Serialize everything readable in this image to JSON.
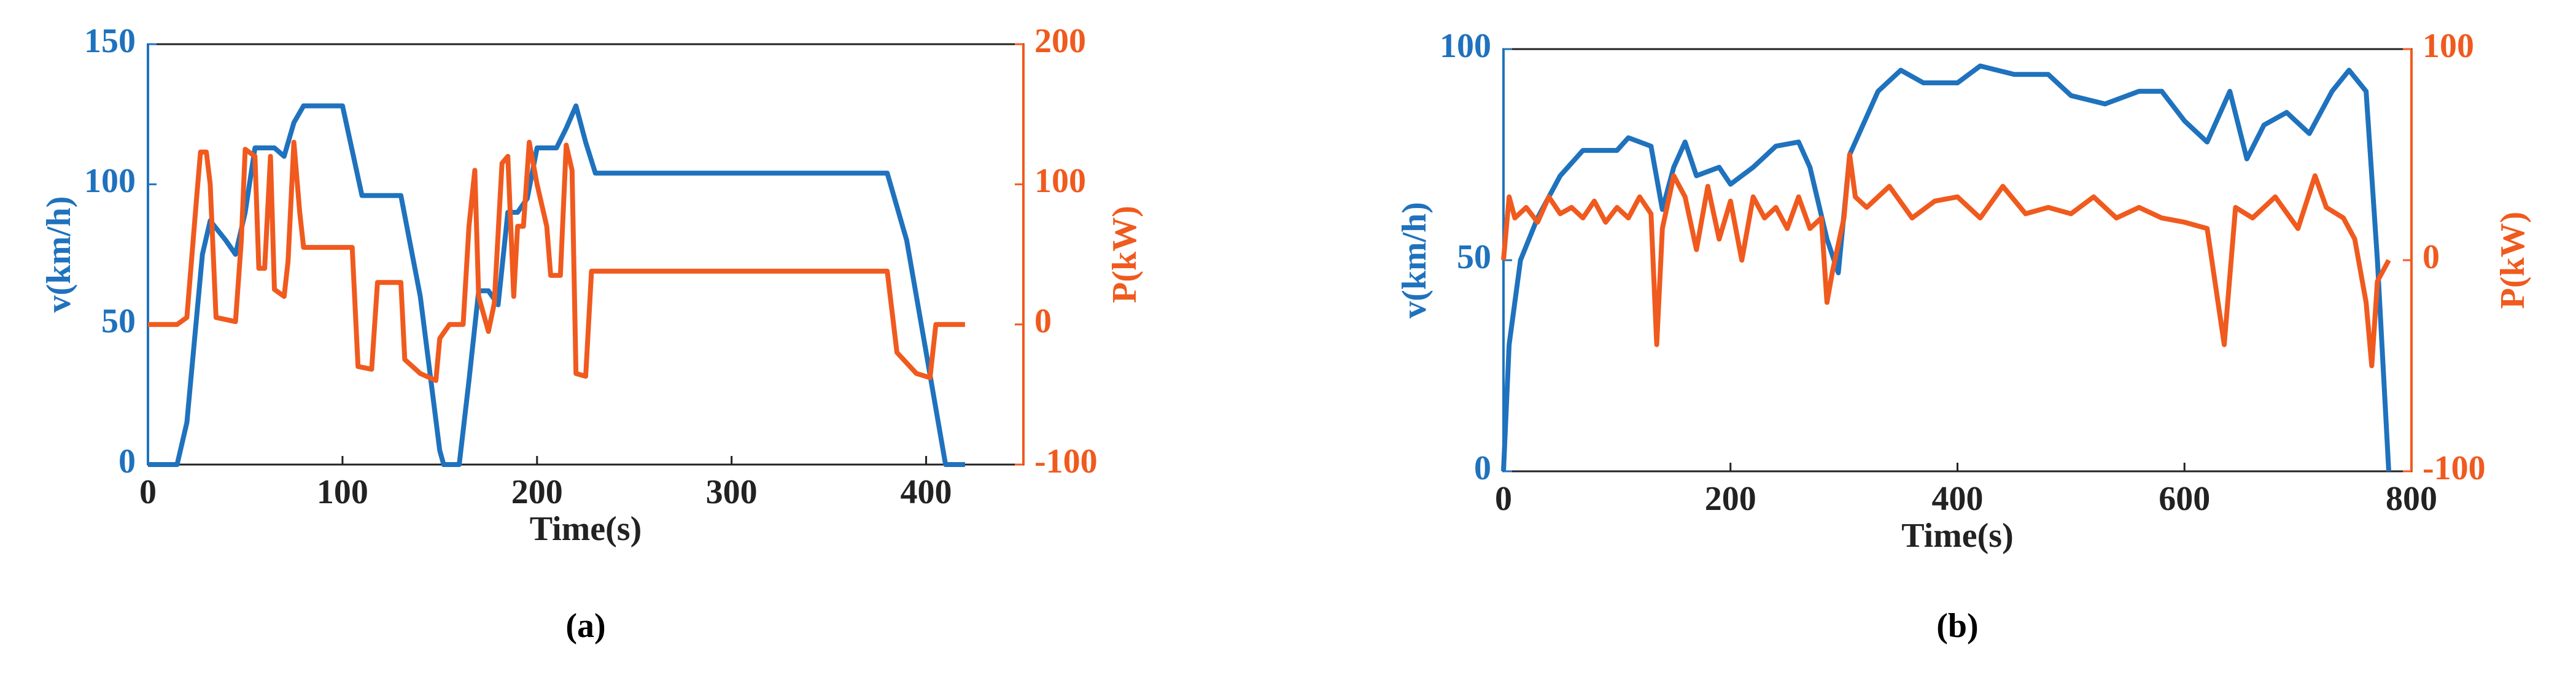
{
  "chart_data": [
    {
      "type": "line",
      "caption": "(a)",
      "xlabel": "Time(s)",
      "ylabel": "v(km/h)",
      "y2label": "P(kW)",
      "xlim": [
        0,
        450
      ],
      "xticks": [
        0,
        100,
        200,
        300,
        400
      ],
      "ylim": [
        0,
        150
      ],
      "yticks": [
        0,
        50,
        100,
        150
      ],
      "y2lim": [
        -100,
        200
      ],
      "y2ticks": [
        -100,
        0,
        100,
        200
      ],
      "series": [
        {
          "color": "#1f72bd",
          "x": [
            0,
            15,
            20,
            28,
            32,
            40,
            45,
            50,
            55,
            65,
            70,
            75,
            80,
            100,
            110,
            130,
            140,
            150,
            152,
            160,
            165,
            170,
            175,
            180,
            185,
            190,
            195,
            200,
            210,
            215,
            220,
            225,
            230,
            380,
            390,
            400,
            410,
            420
          ],
          "values": [
            0,
            0,
            15,
            75,
            87,
            80,
            75,
            90,
            113,
            113,
            110,
            122,
            128,
            128,
            96,
            96,
            60,
            5,
            0,
            0,
            30,
            62,
            62,
            57,
            90,
            90,
            95,
            113,
            113,
            120,
            128,
            115,
            104,
            104,
            80,
            40,
            0,
            0
          ]
        },
        {
          "color": "#f05a1e",
          "axis": "y2",
          "x": [
            0,
            15,
            20,
            25,
            27,
            30,
            32,
            35,
            45,
            48,
            50,
            55,
            57,
            60,
            63,
            65,
            70,
            72,
            75,
            78,
            80,
            105,
            108,
            115,
            118,
            130,
            132,
            140,
            148,
            150,
            155,
            162,
            165,
            168,
            170,
            172,
            175,
            178,
            182,
            185,
            188,
            190,
            193,
            196,
            200,
            205,
            207,
            212,
            215,
            218,
            220,
            225,
            228,
            380,
            385,
            395,
            402,
            405,
            420
          ],
          "values": [
            0,
            0,
            5,
            90,
            123,
            123,
            100,
            5,
            2,
            60,
            125,
            120,
            40,
            40,
            120,
            25,
            20,
            45,
            130,
            80,
            55,
            55,
            -30,
            -32,
            30,
            30,
            -25,
            -35,
            -40,
            -10,
            0,
            0,
            70,
            110,
            20,
            10,
            -5,
            15,
            115,
            120,
            20,
            70,
            70,
            130,
            100,
            70,
            35,
            35,
            128,
            110,
            -35,
            -37,
            38,
            38,
            -20,
            -35,
            -38,
            0,
            0
          ]
        }
      ]
    },
    {
      "type": "line",
      "caption": "(b)",
      "xlabel": "Time(s)",
      "ylabel": "v(km/h)",
      "y2label": "P(kW)",
      "xlim": [
        0,
        800
      ],
      "xticks": [
        0,
        200,
        400,
        600,
        800
      ],
      "ylim": [
        0,
        100
      ],
      "yticks": [
        0,
        50,
        100
      ],
      "y2lim": [
        -100,
        100
      ],
      "y2ticks": [
        -100,
        0,
        100
      ],
      "series": [
        {
          "color": "#1f72bd",
          "x": [
            0,
            5,
            15,
            30,
            50,
            70,
            100,
            110,
            130,
            140,
            150,
            160,
            170,
            190,
            200,
            220,
            240,
            260,
            270,
            285,
            295,
            305,
            330,
            350,
            370,
            400,
            420,
            450,
            480,
            500,
            530,
            560,
            580,
            600,
            620,
            640,
            655,
            670,
            690,
            710,
            730,
            745,
            760,
            770,
            780
          ],
          "values": [
            0,
            30,
            50,
            60,
            70,
            76,
            76,
            79,
            77,
            62,
            72,
            78,
            70,
            72,
            68,
            72,
            77,
            78,
            72,
            55,
            47,
            75,
            90,
            95,
            92,
            92,
            96,
            94,
            94,
            89,
            87,
            90,
            90,
            83,
            78,
            90,
            74,
            82,
            85,
            80,
            90,
            95,
            90,
            50,
            0
          ]
        },
        {
          "color": "#f05a1e",
          "axis": "y2",
          "x": [
            0,
            5,
            10,
            20,
            30,
            40,
            50,
            60,
            70,
            80,
            90,
            100,
            110,
            120,
            130,
            135,
            140,
            150,
            160,
            170,
            180,
            190,
            200,
            210,
            220,
            230,
            240,
            250,
            260,
            270,
            280,
            285,
            290,
            300,
            305,
            310,
            320,
            340,
            360,
            380,
            400,
            420,
            440,
            460,
            480,
            500,
            520,
            540,
            560,
            580,
            600,
            620,
            635,
            645,
            660,
            680,
            700,
            715,
            725,
            740,
            750,
            760,
            765,
            770,
            780
          ],
          "values": [
            0,
            30,
            20,
            25,
            18,
            30,
            22,
            25,
            20,
            28,
            18,
            25,
            20,
            30,
            22,
            -40,
            15,
            40,
            30,
            5,
            35,
            10,
            28,
            0,
            30,
            20,
            25,
            15,
            30,
            15,
            20,
            -20,
            -5,
            20,
            50,
            30,
            25,
            35,
            20,
            28,
            30,
            20,
            35,
            22,
            25,
            22,
            30,
            20,
            25,
            20,
            18,
            15,
            -40,
            25,
            20,
            30,
            15,
            40,
            25,
            20,
            10,
            -20,
            -50,
            -10,
            0
          ]
        }
      ]
    }
  ]
}
